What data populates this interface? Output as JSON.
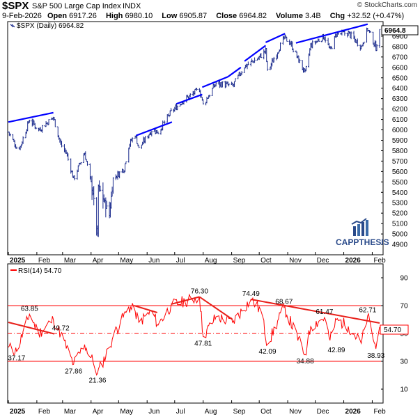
{
  "header": {
    "symbol": "$SPX",
    "name": "S&P 500 Large Cap Index",
    "exchange": "INDX",
    "copyright": "© StockCharts.com",
    "date": "9-Feb-2026",
    "open_label": "Open",
    "open": "6917.26",
    "high_label": "High",
    "high": "6980.10",
    "low_label": "Low",
    "low": "6905.87",
    "close_label": "Close",
    "close": "6964.82",
    "volume_label": "Volume",
    "volume": "3.4B",
    "chg_label": "Chg",
    "chg": "+32.52 (+0.47%)"
  },
  "logo": {
    "text": "CAPPTHESIS"
  },
  "colors": {
    "bars": "#1a2a8c",
    "trendline_price": "#0000ff",
    "rsi_line": "#ff0000",
    "trendline_rsi": "#e8201a",
    "last_price_tag": "#000000",
    "last_rsi_tag": "#ff0000"
  },
  "chart_data": [
    {
      "type": "ohlc",
      "title": "$SPX (Daily) 6964.82",
      "last_value_label": "6964.8",
      "x_ticks": [
        "2025",
        "Feb",
        "Mar",
        "Apr",
        "May",
        "Jun",
        "Jul",
        "Aug",
        "Sep",
        "Oct",
        "Nov",
        "Dec",
        "2026",
        "Feb"
      ],
      "y_ticks": [
        4900,
        5000,
        5100,
        5200,
        5300,
        5400,
        5500,
        5600,
        5700,
        5800,
        5900,
        6000,
        6100,
        6200,
        6300,
        6400,
        6500,
        6600,
        6700,
        6800,
        6900
      ],
      "ylim": [
        4800,
        7040
      ],
      "scale": "linear",
      "grid": false,
      "series": [
        {
          "dates": [
            "2025-01-01",
            "2025-01-10",
            "2025-01-14",
            "2025-01-24",
            "2025-02-03",
            "2025-02-19",
            "2025-02-27",
            "2025-03-05",
            "2025-03-13",
            "2025-03-25",
            "2025-04-03",
            "2025-04-08",
            "2025-04-09",
            "2025-04-21",
            "2025-04-25",
            "2025-05-07",
            "2025-05-12",
            "2025-05-19",
            "2025-05-23",
            "2025-06-06",
            "2025-06-13",
            "2025-06-27",
            "2025-07-10",
            "2025-07-28",
            "2025-08-01",
            "2025-08-15",
            "2025-09-02",
            "2025-09-15",
            "2025-09-30",
            "2025-10-08",
            "2025-10-10",
            "2025-10-28",
            "2025-11-03",
            "2025-11-20",
            "2025-11-26",
            "2025-12-11",
            "2025-12-17",
            "2025-12-24",
            "2026-01-06",
            "2026-01-20",
            "2026-01-27",
            "2026-02-05",
            "2026-02-09"
          ],
          "close": [
            5980,
            5830,
            5840,
            6100,
            6000,
            6120,
            5860,
            5780,
            5530,
            5780,
            5400,
            4980,
            5460,
            5180,
            5530,
            5630,
            5850,
            5960,
            5820,
            6000,
            5980,
            6170,
            6280,
            6390,
            6240,
            6450,
            6420,
            6610,
            6690,
            6760,
            6560,
            6880,
            6850,
            6540,
            6810,
            6900,
            6760,
            6920,
            6930,
            6800,
            6970,
            6790,
            6965
          ]
        }
      ]
    },
    {
      "type": "line",
      "title": "RSI(14) 54.70",
      "last_value_label": "54.70",
      "x_ticks": [
        "2025",
        "Feb",
        "Mar",
        "Apr",
        "May",
        "Jun",
        "Jul",
        "Aug",
        "Sep",
        "Oct",
        "Nov",
        "Dec",
        "2026",
        "Feb"
      ],
      "y_ticks": [
        10,
        30,
        50,
        70,
        90
      ],
      "ylim": [
        0,
        100
      ],
      "reference_lines": [
        70,
        50,
        30
      ],
      "annotations": [
        "37.17",
        "63.85",
        "27.86",
        "49.72",
        "21.36",
        "76.30",
        "47.81",
        "74.49",
        "42.09",
        "68.67",
        "34.88",
        "61.47",
        "42.89",
        "62.71",
        "38.93"
      ],
      "series": [
        {
          "dates": [
            "2025-01-01",
            "2025-01-10",
            "2025-01-24",
            "2025-02-03",
            "2025-02-19",
            "2025-02-27",
            "2025-03-13",
            "2025-03-25",
            "2025-04-03",
            "2025-04-08",
            "2025-04-21",
            "2025-04-25",
            "2025-05-12",
            "2025-05-19",
            "2025-05-23",
            "2025-06-06",
            "2025-06-13",
            "2025-06-27",
            "2025-07-28",
            "2025-08-01",
            "2025-08-15",
            "2025-09-02",
            "2025-09-22",
            "2025-10-03",
            "2025-10-10",
            "2025-10-28",
            "2025-11-20",
            "2025-11-26",
            "2025-12-11",
            "2025-12-17",
            "2025-12-24",
            "2026-01-06",
            "2026-01-20",
            "2026-01-27",
            "2026-02-05",
            "2026-02-09"
          ],
          "values": [
            40,
            37.17,
            63.85,
            50,
            60,
            49.72,
            27.86,
            42,
            30,
            21.36,
            40,
            48,
            69,
            66,
            58,
            66,
            56,
            70,
            76.3,
            47.81,
            62,
            58,
            74.49,
            66,
            42.09,
            68.67,
            34.88,
            55,
            61.47,
            45,
            60,
            55,
            42.89,
            62.71,
            38.93,
            54.7
          ]
        }
      ]
    }
  ]
}
